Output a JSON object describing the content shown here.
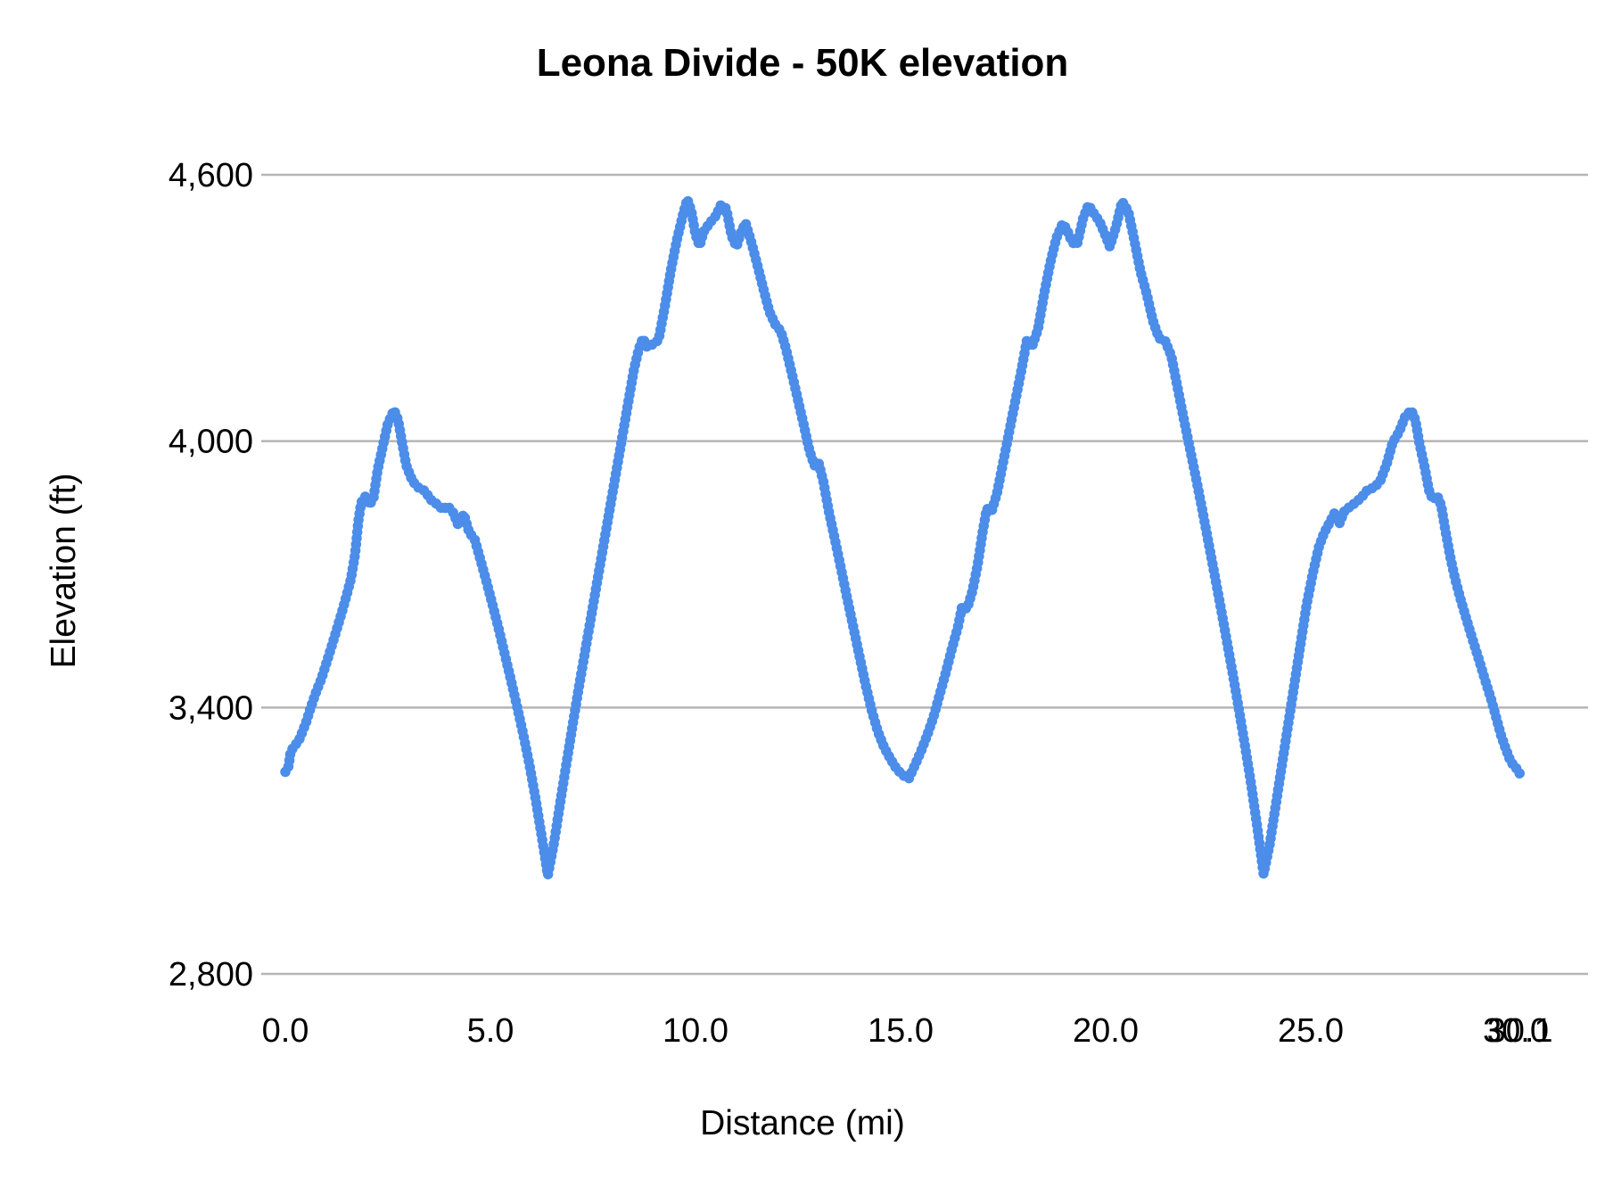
{
  "chart_data": {
    "type": "line",
    "title": "Leona Divide - 50K elevation",
    "xlabel": "Distance (mi)",
    "ylabel": "Elevation (ft)",
    "xlim": [
      0,
      30.1
    ],
    "ylim": [
      2800,
      4600
    ],
    "grid": "horizontal-only",
    "legend_position": "none",
    "series_color": "#4b8de9",
    "gridline_color": "#b5b5b5",
    "marker_style": "dense-round-dots",
    "yticks": [
      {
        "value": 2800,
        "label": "2,800"
      },
      {
        "value": 3400,
        "label": "3,400"
      },
      {
        "value": 4000,
        "label": "4,000"
      },
      {
        "value": 4600,
        "label": "4,600"
      }
    ],
    "xticks": [
      {
        "value": 0.0,
        "label": "0.0"
      },
      {
        "value": 5.0,
        "label": "5.0"
      },
      {
        "value": 10.0,
        "label": "10.0"
      },
      {
        "value": 15.0,
        "label": "15.0"
      },
      {
        "value": 20.0,
        "label": "20.0"
      },
      {
        "value": 25.0,
        "label": "25.0"
      },
      {
        "value": 30.0,
        "label": "30.0"
      },
      {
        "value": 30.1,
        "label": "30.1"
      }
    ],
    "series": [
      {
        "name": "elevation",
        "points": [
          [
            0.0,
            3255
          ],
          [
            0.08,
            3268
          ],
          [
            0.13,
            3302
          ],
          [
            0.22,
            3312
          ],
          [
            0.35,
            3330
          ],
          [
            0.5,
            3365
          ],
          [
            0.62,
            3400
          ],
          [
            0.75,
            3435
          ],
          [
            0.88,
            3465
          ],
          [
            1.0,
            3500
          ],
          [
            1.12,
            3535
          ],
          [
            1.25,
            3575
          ],
          [
            1.38,
            3615
          ],
          [
            1.5,
            3655
          ],
          [
            1.6,
            3690
          ],
          [
            1.7,
            3745
          ],
          [
            1.78,
            3820
          ],
          [
            1.85,
            3862
          ],
          [
            1.95,
            3875
          ],
          [
            2.05,
            3856
          ],
          [
            2.15,
            3872
          ],
          [
            2.25,
            3935
          ],
          [
            2.38,
            3990
          ],
          [
            2.5,
            4040
          ],
          [
            2.65,
            4070
          ],
          [
            2.75,
            4048
          ],
          [
            2.85,
            3995
          ],
          [
            2.95,
            3945
          ],
          [
            3.1,
            3910
          ],
          [
            3.25,
            3895
          ],
          [
            3.4,
            3888
          ],
          [
            3.55,
            3868
          ],
          [
            3.7,
            3858
          ],
          [
            3.85,
            3845
          ],
          [
            3.95,
            3855
          ],
          [
            4.1,
            3838
          ],
          [
            4.22,
            3810
          ],
          [
            4.35,
            3836
          ],
          [
            4.48,
            3795
          ],
          [
            4.62,
            3778
          ],
          [
            4.75,
            3735
          ],
          [
            4.9,
            3685
          ],
          [
            5.05,
            3632
          ],
          [
            5.2,
            3578
          ],
          [
            5.35,
            3520
          ],
          [
            5.5,
            3462
          ],
          [
            5.65,
            3402
          ],
          [
            5.8,
            3340
          ],
          [
            5.95,
            3272
          ],
          [
            6.1,
            3195
          ],
          [
            6.25,
            3110
          ],
          [
            6.4,
            3022
          ],
          [
            6.55,
            3095
          ],
          [
            6.7,
            3185
          ],
          [
            6.85,
            3272
          ],
          [
            7.0,
            3358
          ],
          [
            7.15,
            3442
          ],
          [
            7.3,
            3522
          ],
          [
            7.45,
            3602
          ],
          [
            7.6,
            3682
          ],
          [
            7.75,
            3762
          ],
          [
            7.9,
            3842
          ],
          [
            8.05,
            3922
          ],
          [
            8.2,
            4002
          ],
          [
            8.35,
            4082
          ],
          [
            8.5,
            4162
          ],
          [
            8.62,
            4208
          ],
          [
            8.72,
            4232
          ],
          [
            8.82,
            4212
          ],
          [
            8.95,
            4218
          ],
          [
            9.1,
            4228
          ],
          [
            9.25,
            4302
          ],
          [
            9.4,
            4385
          ],
          [
            9.55,
            4455
          ],
          [
            9.7,
            4512
          ],
          [
            9.8,
            4545
          ],
          [
            9.9,
            4518
          ],
          [
            10.0,
            4465
          ],
          [
            10.1,
            4440
          ],
          [
            10.2,
            4472
          ],
          [
            10.35,
            4492
          ],
          [
            10.5,
            4508
          ],
          [
            10.62,
            4532
          ],
          [
            10.75,
            4524
          ],
          [
            10.88,
            4462
          ],
          [
            11.0,
            4438
          ],
          [
            11.1,
            4468
          ],
          [
            11.22,
            4492
          ],
          [
            11.35,
            4452
          ],
          [
            11.5,
            4400
          ],
          [
            11.65,
            4345
          ],
          [
            11.8,
            4292
          ],
          [
            11.95,
            4262
          ],
          [
            12.08,
            4248
          ],
          [
            12.2,
            4210
          ],
          [
            12.35,
            4152
          ],
          [
            12.5,
            4092
          ],
          [
            12.65,
            4032
          ],
          [
            12.78,
            3978
          ],
          [
            12.9,
            3945
          ],
          [
            13.0,
            3952
          ],
          [
            13.12,
            3908
          ],
          [
            13.25,
            3842
          ],
          [
            13.4,
            3778
          ],
          [
            13.55,
            3712
          ],
          [
            13.7,
            3645
          ],
          [
            13.85,
            3580
          ],
          [
            14.0,
            3515
          ],
          [
            14.15,
            3450
          ],
          [
            14.3,
            3392
          ],
          [
            14.45,
            3345
          ],
          [
            14.6,
            3310
          ],
          [
            14.75,
            3285
          ],
          [
            14.9,
            3262
          ],
          [
            15.05,
            3248
          ],
          [
            15.2,
            3240
          ],
          [
            15.35,
            3270
          ],
          [
            15.5,
            3302
          ],
          [
            15.65,
            3338
          ],
          [
            15.8,
            3378
          ],
          [
            15.95,
            3428
          ],
          [
            16.1,
            3478
          ],
          [
            16.25,
            3532
          ],
          [
            16.4,
            3582
          ],
          [
            16.5,
            3628
          ],
          [
            16.62,
            3622
          ],
          [
            16.75,
            3662
          ],
          [
            16.88,
            3722
          ],
          [
            17.0,
            3795
          ],
          [
            17.1,
            3848
          ],
          [
            17.22,
            3842
          ],
          [
            17.35,
            3882
          ],
          [
            17.5,
            3952
          ],
          [
            17.65,
            4022
          ],
          [
            17.8,
            4092
          ],
          [
            17.95,
            4162
          ],
          [
            18.08,
            4228
          ],
          [
            18.2,
            4212
          ],
          [
            18.35,
            4252
          ],
          [
            18.5,
            4332
          ],
          [
            18.65,
            4402
          ],
          [
            18.8,
            4458
          ],
          [
            18.95,
            4490
          ],
          [
            19.05,
            4478
          ],
          [
            19.18,
            4448
          ],
          [
            19.3,
            4442
          ],
          [
            19.45,
            4502
          ],
          [
            19.58,
            4532
          ],
          [
            19.72,
            4512
          ],
          [
            19.85,
            4495
          ],
          [
            20.0,
            4462
          ],
          [
            20.1,
            4438
          ],
          [
            20.25,
            4482
          ],
          [
            20.4,
            4540
          ],
          [
            20.55,
            4518
          ],
          [
            20.7,
            4452
          ],
          [
            20.85,
            4382
          ],
          [
            21.0,
            4332
          ],
          [
            21.15,
            4272
          ],
          [
            21.3,
            4232
          ],
          [
            21.45,
            4226
          ],
          [
            21.6,
            4192
          ],
          [
            21.75,
            4122
          ],
          [
            21.9,
            4052
          ],
          [
            22.05,
            3985
          ],
          [
            22.2,
            3918
          ],
          [
            22.35,
            3848
          ],
          [
            22.5,
            3775
          ],
          [
            22.65,
            3702
          ],
          [
            22.8,
            3628
          ],
          [
            22.95,
            3552
          ],
          [
            23.1,
            3475
          ],
          [
            23.25,
            3395
          ],
          [
            23.4,
            3312
          ],
          [
            23.55,
            3225
          ],
          [
            23.7,
            3128
          ],
          [
            23.85,
            3025
          ],
          [
            24.0,
            3092
          ],
          [
            24.15,
            3182
          ],
          [
            24.3,
            3272
          ],
          [
            24.45,
            3362
          ],
          [
            24.6,
            3452
          ],
          [
            24.75,
            3542
          ],
          [
            24.9,
            3632
          ],
          [
            25.05,
            3702
          ],
          [
            25.2,
            3762
          ],
          [
            25.32,
            3792
          ],
          [
            25.45,
            3815
          ],
          [
            25.58,
            3838
          ],
          [
            25.7,
            3815
          ],
          [
            25.82,
            3842
          ],
          [
            25.95,
            3852
          ],
          [
            26.1,
            3862
          ],
          [
            26.25,
            3875
          ],
          [
            26.4,
            3892
          ],
          [
            26.55,
            3895
          ],
          [
            26.7,
            3912
          ],
          [
            26.85,
            3948
          ],
          [
            27.0,
            3998
          ],
          [
            27.15,
            4020
          ],
          [
            27.3,
            4055
          ],
          [
            27.45,
            4070
          ],
          [
            27.55,
            4048
          ],
          [
            27.65,
            3995
          ],
          [
            27.78,
            3940
          ],
          [
            27.88,
            3890
          ],
          [
            27.98,
            3868
          ],
          [
            28.08,
            3878
          ],
          [
            28.18,
            3855
          ],
          [
            28.28,
            3800
          ],
          [
            28.4,
            3740
          ],
          [
            28.52,
            3690
          ],
          [
            28.65,
            3645
          ],
          [
            28.8,
            3598
          ],
          [
            28.95,
            3552
          ],
          [
            29.1,
            3508
          ],
          [
            29.25,
            3462
          ],
          [
            29.4,
            3418
          ],
          [
            29.52,
            3378
          ],
          [
            29.64,
            3338
          ],
          [
            29.75,
            3308
          ],
          [
            29.85,
            3284
          ],
          [
            29.95,
            3268
          ],
          [
            30.05,
            3260
          ],
          [
            30.1,
            3250
          ]
        ]
      }
    ]
  }
}
